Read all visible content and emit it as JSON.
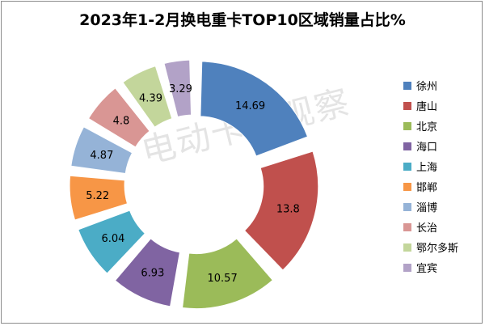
{
  "title": "2023年1-2月换电重卡TOP10区域销量占比%",
  "watermark": "电动卡车观察",
  "chart_data": {
    "type": "pie",
    "title": "2023年1-2月换电重卡TOP10区域销量占比%",
    "style": "exploded doughnut",
    "legend_position": "right",
    "categories": [
      "徐州",
      "唐山",
      "北京",
      "海口",
      "上海",
      "邯郸",
      "淄博",
      "长治",
      "鄂尔多斯",
      "宜宾"
    ],
    "values": [
      14.69,
      13.8,
      10.57,
      6.93,
      6.04,
      5.22,
      4.87,
      4.8,
      4.39,
      3.29
    ],
    "data_labels": [
      "14.69",
      "13.8",
      "10.57",
      "6.93",
      "6.04",
      "5.22",
      "4.87",
      "4.8",
      "4.39",
      "3.29"
    ],
    "colors": [
      "#4f81bd",
      "#c0504d",
      "#9bbb59",
      "#8064a2",
      "#4bacc6",
      "#f79646",
      "#95b3d7",
      "#d99694",
      "#c3d69b",
      "#b2a2c7"
    ]
  }
}
